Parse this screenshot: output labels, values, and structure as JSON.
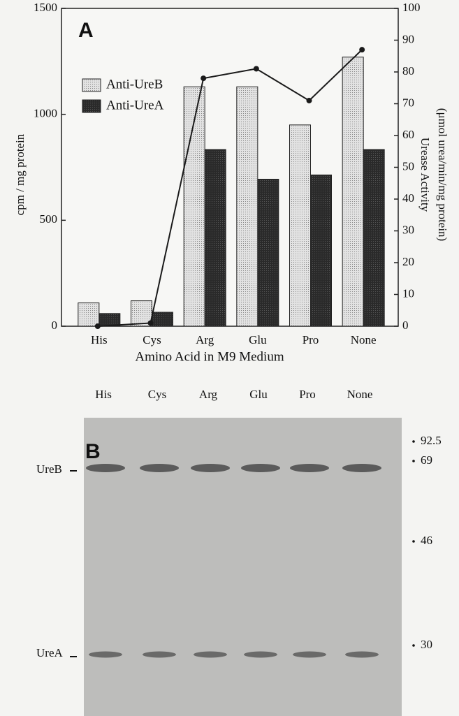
{
  "chart_data": {
    "type": "bar",
    "panel_label": "A",
    "categories": [
      "His",
      "Cys",
      "Arg",
      "Glu",
      "Pro",
      "None"
    ],
    "series": [
      {
        "name": "Anti-UreB",
        "color": "#d4d4d4",
        "values": [
          110,
          120,
          1130,
          1130,
          950,
          1270
        ]
      },
      {
        "name": "Anti-UreA",
        "color": "#2a2a2a",
        "values": [
          60,
          66,
          834,
          694,
          714,
          834
        ]
      },
      {
        "name": "Urease Activity",
        "type": "line",
        "axis": "y2",
        "color": "#1a1a1a",
        "values": [
          0,
          1,
          78,
          81,
          71,
          87
        ]
      }
    ],
    "ylabel": "cpm / mg protein",
    "y2label": "Urease Activity",
    "y2sublabel": "(μmol urea/min/mg protein)",
    "xlabel": "Amino Acid in M9 Medium",
    "ylim": [
      0,
      1500
    ],
    "yticks": [
      0,
      500,
      1000,
      1500
    ],
    "y2lim": [
      0,
      100
    ],
    "y2ticks": [
      0,
      10,
      20,
      30,
      40,
      50,
      60,
      70,
      80,
      90,
      100
    ],
    "legend": "upper left",
    "grid": false
  },
  "gel": {
    "panel_label": "B",
    "lanes": [
      "His",
      "Cys",
      "Arg",
      "Glu",
      "Pro",
      "None"
    ],
    "bands": [
      "UreB",
      "UreA"
    ],
    "markers": [
      "92.5",
      "69",
      "46",
      "30"
    ]
  }
}
